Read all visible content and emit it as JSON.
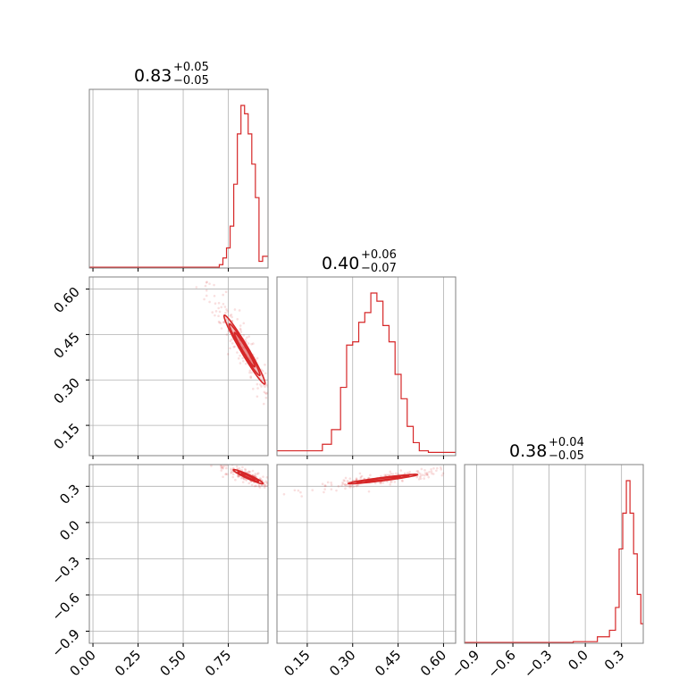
{
  "chart_data": {
    "type": "corner",
    "color": "#d62728",
    "grid": true,
    "titles": [
      {
        "value": "0.83",
        "plus": "+0.05",
        "minus": "−0.05"
      },
      {
        "value": "0.40",
        "plus": "+0.06",
        "minus": "−0.07"
      },
      {
        "value": "0.38",
        "plus": "+0.04",
        "minus": "−0.05"
      }
    ],
    "parameters": [
      {
        "range": [
          -0.02,
          0.97
        ],
        "ticks": [
          0.0,
          0.25,
          0.5,
          0.75
        ],
        "tick_labels": [
          "0.00",
          "0.25",
          "0.50",
          "0.75"
        ]
      },
      {
        "range": [
          0.05,
          0.64
        ],
        "ticks": [
          0.15,
          0.3,
          0.45,
          0.6
        ],
        "tick_labels": [
          "0.15",
          "0.30",
          "0.45",
          "0.60"
        ]
      },
      {
        "range": [
          -1.0,
          0.48
        ],
        "ticks": [
          -0.9,
          -0.6,
          -0.3,
          0.0,
          0.3
        ],
        "tick_labels": [
          "−0.9",
          "−0.6",
          "−0.3",
          "0.0",
          "0.3"
        ]
      }
    ],
    "histograms": [
      {
        "edges": [
          -0.02,
          0.7,
          0.72,
          0.74,
          0.76,
          0.78,
          0.8,
          0.82,
          0.84,
          0.86,
          0.88,
          0.9,
          0.92,
          0.94,
          0.97
        ],
        "counts": [
          0.5,
          2,
          6,
          12,
          25,
          50,
          80,
          97,
          92,
          80,
          62,
          42,
          4,
          7
        ]
      },
      {
        "edges": [
          0.05,
          0.2,
          0.23,
          0.26,
          0.28,
          0.3,
          0.32,
          0.34,
          0.36,
          0.38,
          0.4,
          0.42,
          0.44,
          0.46,
          0.48,
          0.5,
          0.52,
          0.55,
          0.64
        ],
        "counts": [
          3,
          7,
          16,
          42,
          68,
          70,
          82,
          88,
          100,
          95,
          80,
          70,
          50,
          35,
          18,
          8,
          3,
          2
        ]
      },
      {
        "edges": [
          -1.0,
          -0.1,
          0.1,
          0.2,
          0.25,
          0.28,
          0.31,
          0.34,
          0.37,
          0.4,
          0.43,
          0.46,
          0.48
        ],
        "counts": [
          0.5,
          1,
          4,
          8,
          22,
          58,
          80,
          100,
          80,
          55,
          30,
          12
        ]
      }
    ],
    "contours": [
      {
        "row": 1,
        "col": 0,
        "center": [
          0.84,
          0.4
        ],
        "levels": [
          {
            "a": 0.16,
            "b": 0.018,
            "angle": -45
          },
          {
            "a": 0.12,
            "b": 0.013,
            "angle": -45
          },
          {
            "a": 0.08,
            "b": 0.009,
            "angle": -45
          }
        ]
      },
      {
        "row": 2,
        "col": 0,
        "center": [
          0.86,
          0.38
        ],
        "levels": [
          {
            "a": 0.1,
            "b": 0.015,
            "angle": -35
          },
          {
            "a": 0.07,
            "b": 0.011,
            "angle": -35
          },
          {
            "a": 0.045,
            "b": 0.007,
            "angle": -35
          }
        ]
      },
      {
        "row": 2,
        "col": 1,
        "center": [
          0.4,
          0.36
        ],
        "levels": [
          {
            "a": 0.12,
            "b": 0.013,
            "angle": 18
          },
          {
            "a": 0.09,
            "b": 0.01,
            "angle": 18
          },
          {
            "a": 0.06,
            "b": 0.007,
            "angle": 18
          }
        ]
      }
    ]
  }
}
